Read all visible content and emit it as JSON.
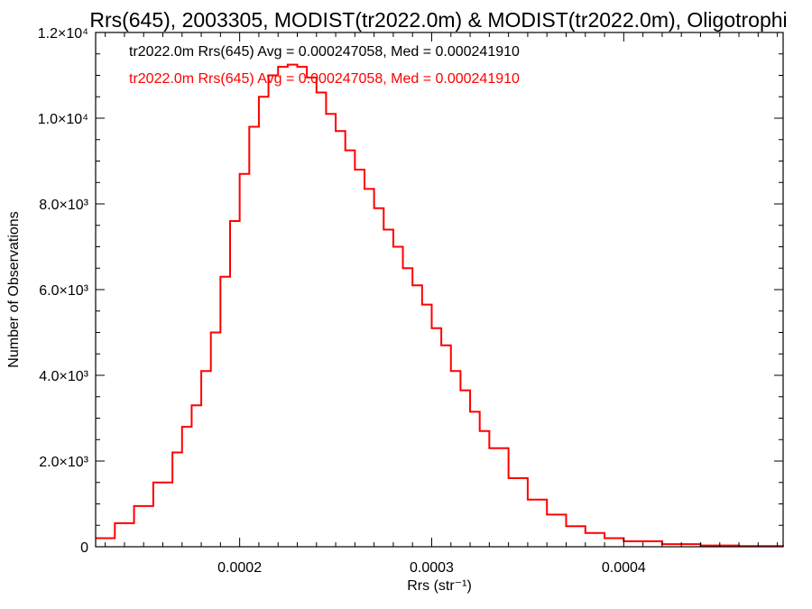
{
  "chart_data": {
    "type": "line",
    "title": "Rrs(645), 2003305, MODIST(tr2022.0m) & MODIST(tr2022.0m), Oligotrophi",
    "xlabel": "Rrs (str⁻¹)",
    "ylabel": "Number of Observations",
    "xlim": [
      0.000125,
      0.000483
    ],
    "ylim": [
      0,
      12000
    ],
    "grid": false,
    "x_ticks": [
      {
        "value": 0.0002,
        "label": "0.0002"
      },
      {
        "value": 0.0003,
        "label": "0.0003"
      },
      {
        "value": 0.0004,
        "label": "0.0004"
      }
    ],
    "y_ticks": [
      {
        "value": 0,
        "label": "0"
      },
      {
        "value": 2000,
        "label": "2.0×10³"
      },
      {
        "value": 4000,
        "label": "4.0×10³"
      },
      {
        "value": 6000,
        "label": "6.0×10³"
      },
      {
        "value": 8000,
        "label": "8.0×10³"
      },
      {
        "value": 10000,
        "label": "1.0×10⁴"
      },
      {
        "value": 12000,
        "label": "1.2×10⁴"
      }
    ],
    "annotations": [
      {
        "text": "tr2022.0m Rrs(645) Avg = 0.000247058, Med = 0.000241910",
        "color": "#000000"
      },
      {
        "text": "tr2022.0m Rrs(645) Avg = 0.000247058, Med = 0.000241910",
        "color": "#ff0000"
      }
    ],
    "series": [
      {
        "color": "#ff0000",
        "step": true,
        "x": [
          0.000125,
          0.000135,
          0.000145,
          0.000155,
          0.000165,
          0.00017,
          0.000175,
          0.00018,
          0.000185,
          0.00019,
          0.000195,
          0.0002,
          0.000205,
          0.00021,
          0.000215,
          0.00022,
          0.000225,
          0.00023,
          0.000235,
          0.00024,
          0.000245,
          0.00025,
          0.000255,
          0.00026,
          0.000265,
          0.00027,
          0.000275,
          0.00028,
          0.000285,
          0.00029,
          0.000295,
          0.0003,
          0.000305,
          0.00031,
          0.000315,
          0.00032,
          0.000325,
          0.00033,
          0.00034,
          0.00035,
          0.00036,
          0.00037,
          0.00038,
          0.00039,
          0.0004,
          0.00042,
          0.00044,
          0.00046,
          0.000483
        ],
        "y": [
          200,
          550,
          950,
          1500,
          2200,
          2800,
          3300,
          4100,
          5000,
          6300,
          7600,
          8700,
          9800,
          10500,
          11000,
          11200,
          11250,
          11200,
          10950,
          10600,
          10100,
          9700,
          9250,
          8800,
          8350,
          7900,
          7400,
          7000,
          6500,
          6100,
          5650,
          5100,
          4700,
          4100,
          3650,
          3150,
          2700,
          2300,
          1600,
          1100,
          750,
          480,
          320,
          200,
          130,
          60,
          30,
          15,
          10
        ]
      }
    ]
  }
}
